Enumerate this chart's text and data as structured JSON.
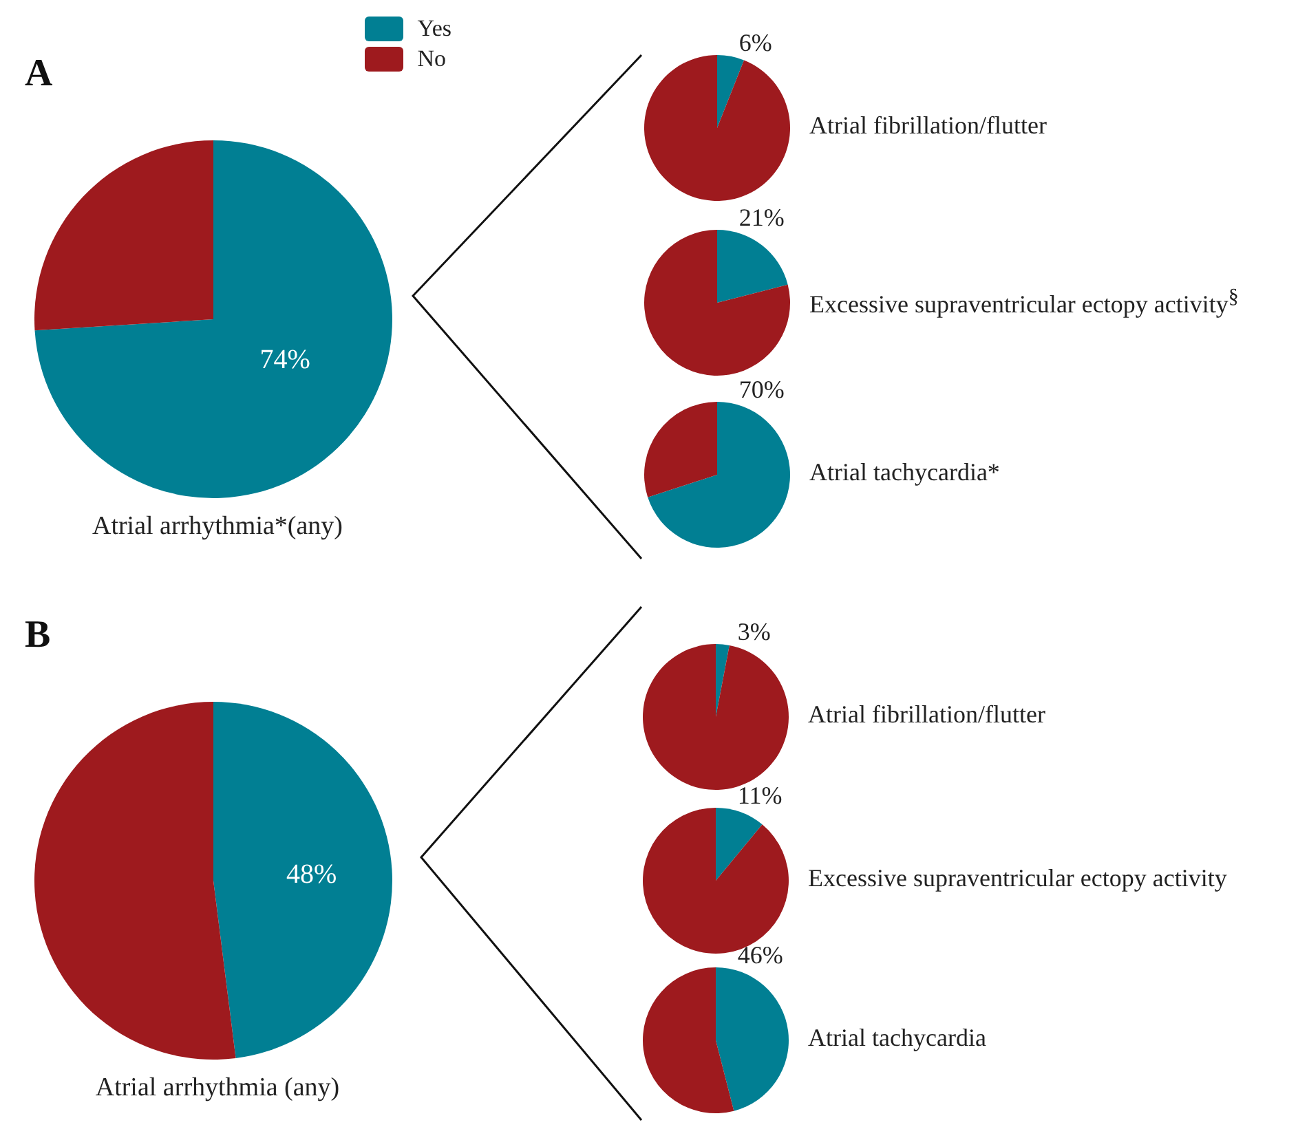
{
  "chart_data": [
    {
      "type": "pie",
      "title": "A",
      "xlabel": "Atrial arrhythmia*(any)",
      "categories": [
        "Yes",
        "No"
      ],
      "values": [
        74,
        26
      ],
      "colors": [
        "#017f93",
        "#9e1a1e"
      ],
      "value_labels": [
        "74%",
        null
      ],
      "legend": "top right"
    },
    {
      "type": "pie",
      "xlabel": "Atrial fibrillation/flutter",
      "categories": [
        null,
        null
      ],
      "values": [
        6,
        94
      ],
      "colors": [
        "#017f93",
        "#9e1a1e"
      ],
      "value_labels": [
        "6%",
        null
      ]
    },
    {
      "type": "pie",
      "xlabel": "Excessive supraventricular ectopy activity$^{§}$",
      "categories": [
        null,
        null
      ],
      "values": [
        21,
        79
      ],
      "colors": [
        "#017f93",
        "#9e1a1e"
      ],
      "value_labels": [
        "21%",
        null
      ]
    },
    {
      "type": "pie",
      "xlabel": "Atrial tachycardia*",
      "categories": [
        null,
        null
      ],
      "values": [
        70,
        30
      ],
      "colors": [
        "#017f93",
        "#9e1a1e"
      ],
      "value_labels": [
        "70%",
        null
      ]
    },
    {
      "type": "pie",
      "title": "B",
      "xlabel": "Atrial arrhythmia (any)",
      "categories": [
        null,
        null
      ],
      "values": [
        48,
        52
      ],
      "colors": [
        "#017f93",
        "#9e1a1e"
      ],
      "value_labels": [
        "48%",
        null
      ]
    },
    {
      "type": "pie",
      "xlabel": "Atrial fibrillation/flutter",
      "categories": [
        null,
        null
      ],
      "values": [
        3,
        97
      ],
      "colors": [
        "#017f93",
        "#9e1a1e"
      ],
      "value_labels": [
        "3%",
        null
      ]
    },
    {
      "type": "pie",
      "xlabel": "Excessive supraventricular ectopy activity",
      "categories": [
        null,
        null
      ],
      "values": [
        11,
        89
      ],
      "colors": [
        "#017f93",
        "#9e1a1e"
      ],
      "value_labels": [
        "11%",
        null
      ]
    },
    {
      "type": "pie",
      "xlabel": "Atrial tachycardia",
      "categories": [
        null,
        null
      ],
      "values": [
        46,
        54
      ],
      "colors": [
        "#017f93",
        "#9e1a1e"
      ],
      "value_labels": [
        "46%",
        null
      ]
    }
  ]
}
